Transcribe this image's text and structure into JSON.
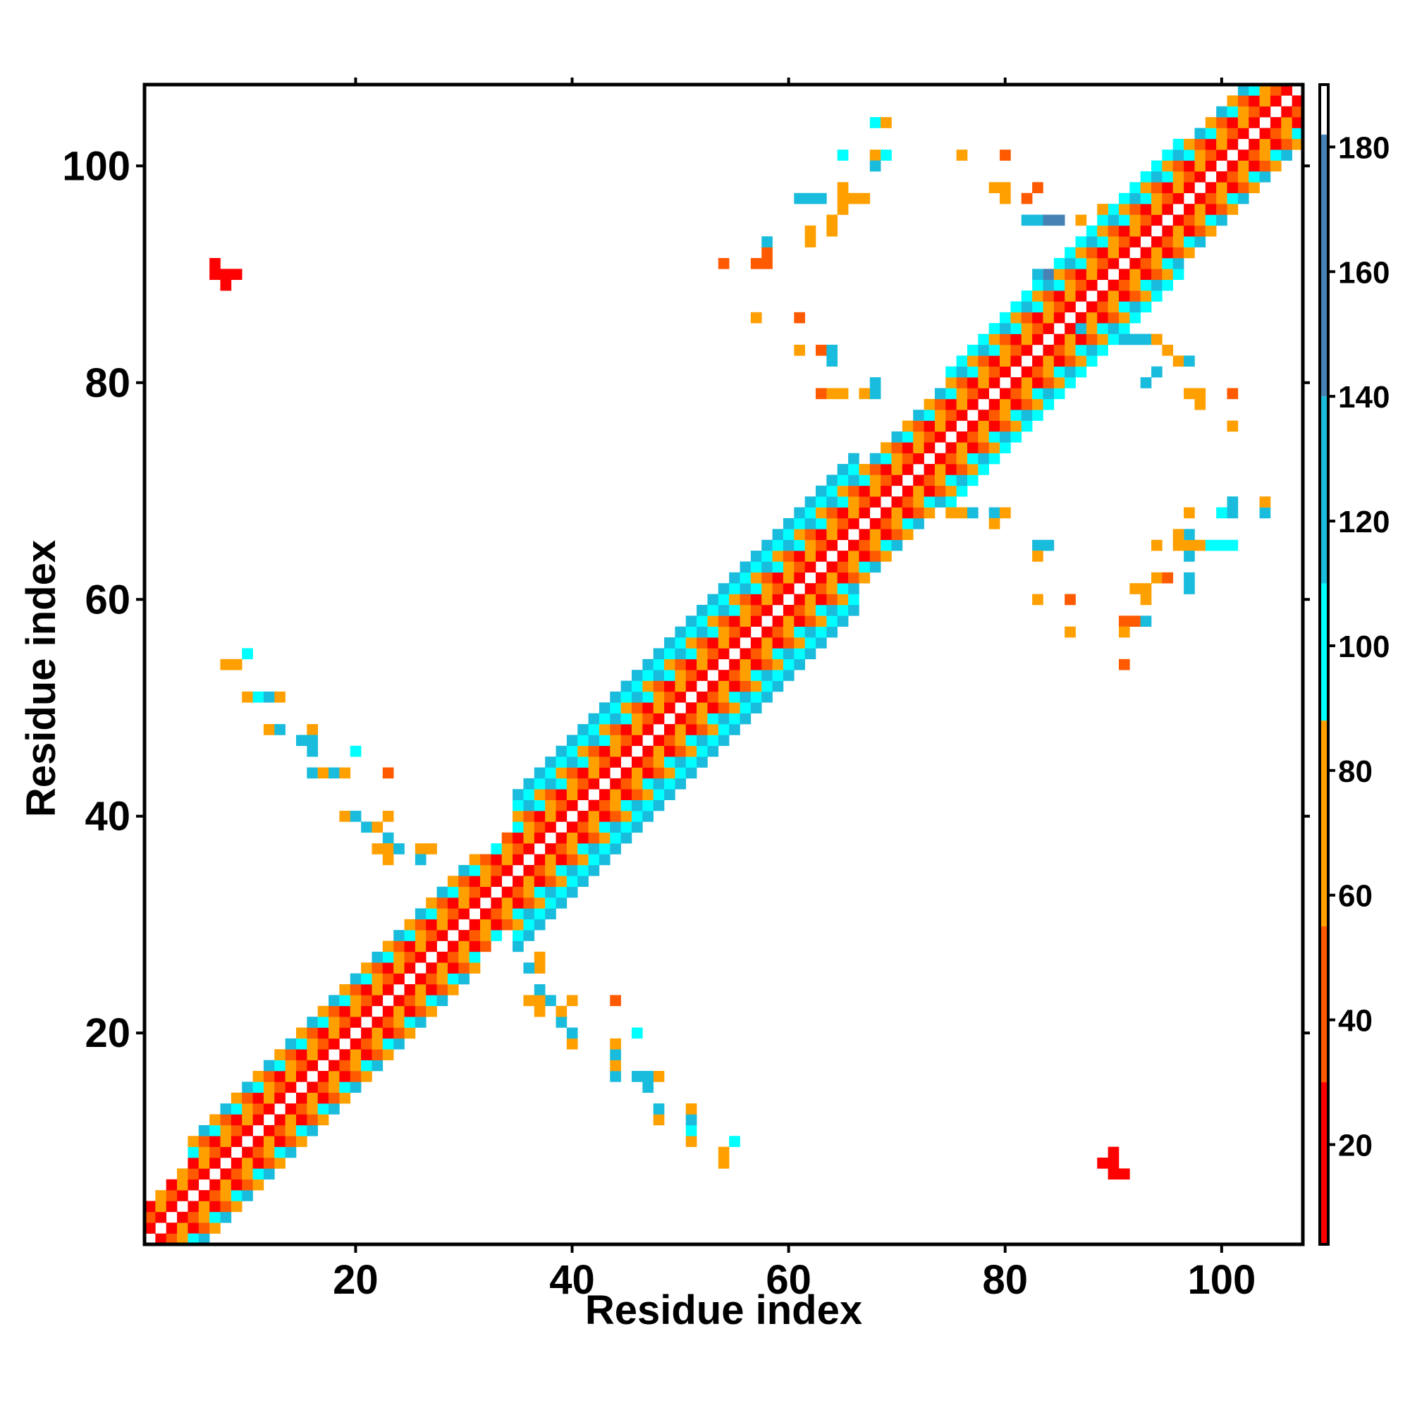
{
  "chart_data": {
    "type": "heatmap",
    "title": "",
    "xlabel": "Residue index",
    "ylabel": "Residue index",
    "xlim": [
      1,
      107
    ],
    "ylim": [
      1,
      107
    ],
    "x_ticks": [
      20,
      40,
      60,
      80,
      100
    ],
    "y_ticks": [
      20,
      40,
      60,
      80,
      100
    ],
    "grid": false,
    "colorbar": {
      "range": [
        4,
        190
      ],
      "ticks": [
        20,
        40,
        60,
        80,
        100,
        120,
        140,
        160,
        180
      ],
      "colors": {
        "red": "#ff0000",
        "orange_red": "#ff5a00",
        "orange": "#ffa000",
        "cyan": "#00ffff",
        "light_blue": "#19bcdc",
        "steel_blue": "#4682b4",
        "white": "#ffffff"
      }
    },
    "main_band": {
      "description_values": "contact distance |i-j| pattern along diagonal",
      "segments": [
        {
          "start": 1,
          "end": 5,
          "width": 3
        },
        {
          "start": 5,
          "end": 31,
          "width": 5
        },
        {
          "start": 31,
          "end": 35,
          "width": 4
        },
        {
          "start": 35,
          "end": 66,
          "width": 7
        },
        {
          "start": 66,
          "end": 75,
          "width": 5
        },
        {
          "start": 75,
          "end": 96,
          "width": 6
        },
        {
          "start": 96,
          "end": 107,
          "width": 5
        }
      ]
    },
    "off_diagonal_contacts": [
      [
        7,
        90,
        10
      ],
      [
        8,
        90,
        10
      ],
      [
        7,
        91,
        10
      ],
      [
        8,
        89,
        10
      ],
      [
        9,
        90,
        10
      ],
      [
        8,
        54,
        70
      ],
      [
        9,
        54,
        70
      ],
      [
        10,
        55,
        95
      ],
      [
        10,
        51,
        70
      ],
      [
        11,
        51,
        95
      ],
      [
        12,
        51,
        120
      ],
      [
        13,
        51,
        70
      ],
      [
        12,
        48,
        70
      ],
      [
        13,
        48,
        120
      ],
      [
        16,
        48,
        70
      ],
      [
        16,
        47,
        120
      ],
      [
        16,
        46,
        120
      ],
      [
        16,
        44,
        120
      ],
      [
        17,
        44,
        70
      ],
      [
        18,
        44,
        120
      ],
      [
        19,
        44,
        70
      ],
      [
        20,
        46,
        95
      ],
      [
        15,
        47,
        120
      ],
      [
        19,
        40,
        70
      ],
      [
        20,
        40,
        120
      ],
      [
        21,
        39,
        120
      ],
      [
        22,
        39,
        70
      ],
      [
        23,
        38,
        120
      ],
      [
        23,
        37,
        70
      ],
      [
        22,
        37,
        70
      ],
      [
        23,
        36,
        70
      ],
      [
        24,
        37,
        120
      ],
      [
        26,
        37,
        70
      ],
      [
        27,
        37,
        70
      ],
      [
        26,
        36,
        120
      ],
      [
        23,
        44,
        40
      ],
      [
        23,
        40,
        70
      ],
      [
        54,
        8,
        70
      ],
      [
        54,
        9,
        70
      ],
      [
        55,
        10,
        95
      ],
      [
        51,
        10,
        70
      ],
      [
        51,
        11,
        95
      ],
      [
        51,
        12,
        120
      ],
      [
        51,
        13,
        70
      ],
      [
        48,
        12,
        70
      ],
      [
        48,
        13,
        120
      ],
      [
        48,
        16,
        70
      ],
      [
        47,
        16,
        120
      ],
      [
        46,
        16,
        120
      ],
      [
        44,
        16,
        120
      ],
      [
        44,
        17,
        70
      ],
      [
        44,
        18,
        120
      ],
      [
        44,
        19,
        70
      ],
      [
        46,
        20,
        95
      ],
      [
        47,
        15,
        120
      ],
      [
        40,
        19,
        70
      ],
      [
        40,
        20,
        120
      ],
      [
        39,
        21,
        120
      ],
      [
        39,
        22,
        70
      ],
      [
        38,
        23,
        120
      ],
      [
        37,
        23,
        70
      ],
      [
        37,
        22,
        70
      ],
      [
        36,
        23,
        70
      ],
      [
        37,
        24,
        120
      ],
      [
        37,
        26,
        70
      ],
      [
        37,
        27,
        70
      ],
      [
        36,
        26,
        120
      ],
      [
        44,
        23,
        40
      ],
      [
        40,
        23,
        70
      ],
      [
        90,
        7,
        10
      ],
      [
        90,
        8,
        10
      ],
      [
        91,
        7,
        10
      ],
      [
        89,
        8,
        10
      ],
      [
        90,
        9,
        10
      ],
      [
        54,
        91,
        40
      ],
      [
        57,
        91,
        40
      ],
      [
        58,
        91,
        40
      ],
      [
        58,
        92,
        40
      ],
      [
        58,
        93,
        120
      ],
      [
        57,
        86,
        70
      ],
      [
        61,
        86,
        40
      ],
      [
        61,
        83,
        70
      ],
      [
        63,
        83,
        40
      ],
      [
        64,
        83,
        120
      ],
      [
        64,
        82,
        120
      ],
      [
        61,
        97,
        120
      ],
      [
        62,
        97,
        120
      ],
      [
        63,
        97,
        120
      ],
      [
        62,
        94,
        70
      ],
      [
        62,
        93,
        70
      ],
      [
        64,
        94,
        70
      ],
      [
        64,
        95,
        70
      ],
      [
        65,
        97,
        70
      ],
      [
        65,
        96,
        70
      ],
      [
        65,
        98,
        70
      ],
      [
        66,
        97,
        70
      ],
      [
        67,
        97,
        70
      ],
      [
        65,
        101,
        95
      ],
      [
        68,
        101,
        70
      ],
      [
        69,
        101,
        95
      ],
      [
        68,
        104,
        95
      ],
      [
        69,
        104,
        70
      ],
      [
        68,
        100,
        120
      ],
      [
        63,
        79,
        40
      ],
      [
        64,
        79,
        70
      ],
      [
        65,
        79,
        70
      ],
      [
        67,
        79,
        70
      ],
      [
        68,
        79,
        120
      ],
      [
        68,
        80,
        120
      ],
      [
        76,
        101,
        70
      ],
      [
        80,
        101,
        40
      ],
      [
        79,
        98,
        70
      ],
      [
        80,
        98,
        70
      ],
      [
        80,
        97,
        70
      ],
      [
        82,
        97,
        40
      ],
      [
        83,
        98,
        40
      ],
      [
        82,
        95,
        120
      ],
      [
        83,
        95,
        120
      ],
      [
        84,
        95,
        145
      ],
      [
        85,
        95,
        145
      ],
      [
        87,
        95,
        70
      ],
      [
        83,
        90,
        120
      ],
      [
        84,
        90,
        145
      ],
      [
        84,
        89,
        120
      ],
      [
        89,
        96,
        70
      ],
      [
        87,
        85,
        120
      ],
      [
        91,
        84,
        120
      ],
      [
        92,
        84,
        120
      ],
      [
        93,
        84,
        120
      ],
      [
        94,
        84,
        70
      ],
      [
        95,
        83,
        70
      ],
      [
        96,
        82,
        70
      ],
      [
        97,
        82,
        120
      ],
      [
        94,
        81,
        120
      ],
      [
        93,
        80,
        120
      ],
      [
        97,
        79,
        70
      ],
      [
        98,
        79,
        70
      ],
      [
        98,
        78,
        70
      ],
      [
        101,
        79,
        40
      ],
      [
        101,
        76,
        70
      ],
      [
        75,
        68,
        70
      ],
      [
        76,
        68,
        70
      ],
      [
        77,
        68,
        120
      ],
      [
        79,
        68,
        120
      ],
      [
        79,
        67,
        70
      ],
      [
        80,
        68,
        70
      ],
      [
        83,
        65,
        120
      ],
      [
        84,
        65,
        120
      ],
      [
        83,
        64,
        70
      ],
      [
        83,
        60,
        70
      ],
      [
        86,
        60,
        40
      ],
      [
        86,
        57,
        70
      ],
      [
        91,
        58,
        40
      ],
      [
        92,
        58,
        40
      ],
      [
        91,
        57,
        70
      ],
      [
        91,
        54,
        40
      ],
      [
        93,
        58,
        120
      ],
      [
        92,
        61,
        70
      ],
      [
        93,
        61,
        70
      ],
      [
        93,
        60,
        70
      ],
      [
        94,
        62,
        70
      ],
      [
        94,
        65,
        70
      ],
      [
        96,
        65,
        70
      ],
      [
        97,
        65,
        70
      ],
      [
        98,
        65,
        70
      ],
      [
        97,
        64,
        120
      ],
      [
        97,
        66,
        120
      ],
      [
        97,
        62,
        120
      ],
      [
        97,
        61,
        120
      ],
      [
        97,
        68,
        70
      ],
      [
        99,
        65,
        95
      ],
      [
        100,
        65,
        95
      ],
      [
        101,
        65,
        95
      ],
      [
        100,
        68,
        95
      ],
      [
        101,
        68,
        120
      ],
      [
        101,
        69,
        120
      ],
      [
        104,
        68,
        120
      ],
      [
        104,
        69,
        70
      ],
      [
        95,
        62,
        40
      ],
      [
        96,
        66,
        70
      ]
    ]
  }
}
